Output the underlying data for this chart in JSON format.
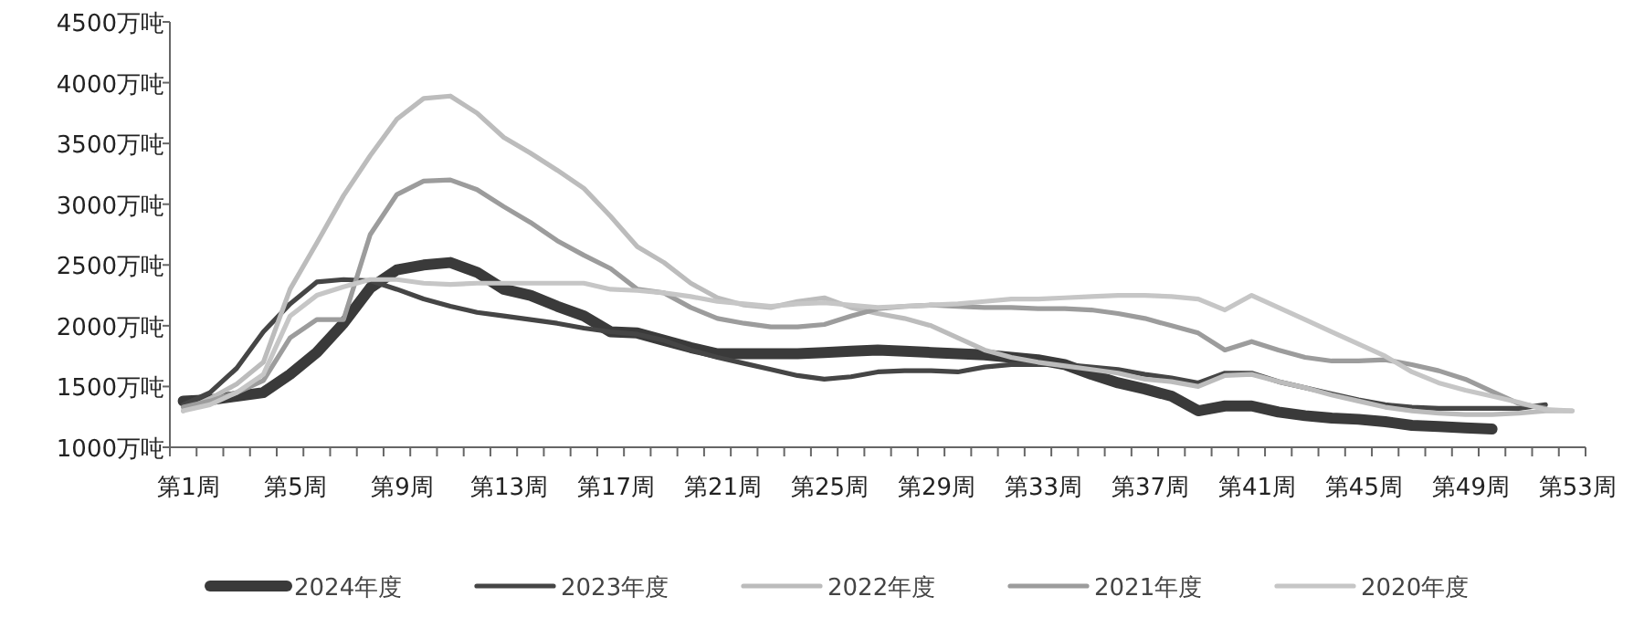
{
  "chart_data": {
    "type": "line",
    "ylim": [
      1000,
      4500
    ],
    "categories": [
      "第1周",
      null,
      null,
      null,
      "第5周",
      null,
      null,
      null,
      "第9周",
      null,
      null,
      null,
      "第13周",
      null,
      null,
      null,
      "第17周",
      null,
      null,
      null,
      "第21周",
      null,
      null,
      null,
      "第25周",
      null,
      null,
      null,
      "第29周",
      null,
      null,
      null,
      "第33周",
      null,
      null,
      null,
      "第37周",
      null,
      null,
      null,
      "第41周",
      null,
      null,
      null,
      "第45周",
      null,
      null,
      null,
      "第49周",
      null,
      null,
      null,
      "第53周"
    ],
    "yticks": [
      {
        "value": 1000,
        "label": "1000万吨"
      },
      {
        "value": 1500,
        "label": "1500万吨"
      },
      {
        "value": 2000,
        "label": "2000万吨"
      },
      {
        "value": 2500,
        "label": "2500万吨"
      },
      {
        "value": 3000,
        "label": "3000万吨"
      },
      {
        "value": 3500,
        "label": "3500万吨"
      },
      {
        "value": 4000,
        "label": "4000万吨"
      },
      {
        "value": 4500,
        "label": "4500万吨"
      }
    ],
    "grid": false,
    "legend": "bottom",
    "line_style": "solid",
    "marker": "none",
    "series": [
      {
        "name": "2024年度",
        "color": "#3a3a3a",
        "values": [
          1380,
          1390,
          1420,
          1450,
          1600,
          1780,
          2020,
          2310,
          2460,
          2500,
          2520,
          2440,
          2300,
          2250,
          2160,
          2080,
          1950,
          1940,
          1880,
          1820,
          1770,
          1770,
          1770,
          1770,
          1780,
          1790,
          1800,
          1790,
          1780,
          1770,
          1760,
          1740,
          1720,
          1680,
          1600,
          1530,
          1480,
          1420,
          1300,
          1340,
          1340,
          1290,
          1260,
          1240,
          1230,
          1210,
          1180,
          1170,
          1160,
          1150,
          null,
          null,
          null
        ]
      },
      {
        "name": "2023年度",
        "color": "#454545",
        "values": [
          1350,
          1450,
          1650,
          1950,
          2180,
          2360,
          2380,
          2370,
          2300,
          2220,
          2160,
          2110,
          2080,
          2050,
          2020,
          1980,
          1950,
          1930,
          1880,
          1800,
          1740,
          1690,
          1640,
          1590,
          1560,
          1580,
          1620,
          1630,
          1630,
          1620,
          1660,
          1680,
          1680,
          1680,
          1660,
          1640,
          1600,
          1570,
          1530,
          1610,
          1610,
          1540,
          1490,
          1440,
          1390,
          1350,
          1330,
          1320,
          1320,
          1320,
          1320,
          1350,
          null
        ]
      },
      {
        "name": "2022年度",
        "color": "#bcbcbc",
        "values": [
          1300,
          1400,
          1520,
          1700,
          2300,
          2680,
          3070,
          3400,
          3700,
          3870,
          3890,
          3750,
          3550,
          3420,
          3280,
          3130,
          2900,
          2650,
          2520,
          2350,
          2230,
          2170,
          2150,
          2200,
          2230,
          2150,
          2100,
          2060,
          2000,
          1900,
          1800,
          1740,
          1700,
          1670,
          1640,
          1610,
          1560,
          1540,
          1500,
          1590,
          1600,
          1540,
          1490,
          1430,
          1380,
          1330,
          1300,
          1280,
          1270,
          1270,
          1280,
          1300,
          1300
        ]
      },
      {
        "name": "2021年度",
        "color": "#9c9c9c",
        "values": [
          1330,
          1380,
          1450,
          1550,
          1900,
          2050,
          2050,
          2750,
          3080,
          3190,
          3200,
          3120,
          2980,
          2850,
          2700,
          2580,
          2470,
          2300,
          2270,
          2150,
          2060,
          2020,
          1990,
          1990,
          2010,
          2080,
          2140,
          2160,
          2170,
          2160,
          2150,
          2150,
          2140,
          2140,
          2130,
          2100,
          2060,
          2000,
          1940,
          1800,
          1870,
          1800,
          1740,
          1710,
          1710,
          1720,
          1680,
          1630,
          1560,
          1460,
          1360,
          1320,
          null
        ]
      },
      {
        "name": "2020年度",
        "color": "#c6c6c6",
        "values": [
          1300,
          1350,
          1450,
          1600,
          2080,
          2250,
          2320,
          2380,
          2380,
          2350,
          2340,
          2350,
          2350,
          2350,
          2350,
          2350,
          2300,
          2290,
          2270,
          2240,
          2200,
          2180,
          2160,
          2180,
          2190,
          2170,
          2150,
          2160,
          2170,
          2180,
          2200,
          2220,
          2220,
          2230,
          2240,
          2250,
          2250,
          2240,
          2220,
          2130,
          2250,
          2150,
          2050,
          1950,
          1850,
          1750,
          1620,
          1530,
          1470,
          1420,
          1370,
          1310,
          1300
        ]
      }
    ]
  }
}
